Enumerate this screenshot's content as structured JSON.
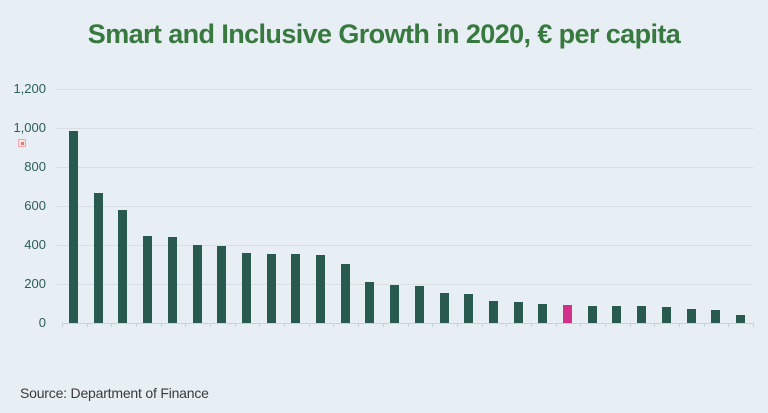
{
  "page": {
    "background_color": "#e7eef4"
  },
  "header": {
    "title": "Smart and Inclusive Growth in 2020, € per capita",
    "title_color": "#38793f"
  },
  "footer": {
    "source": "Source: Department of Finance"
  },
  "icons": {
    "broken_image": "broken-image-placeholder"
  },
  "chart_data": {
    "type": "bar",
    "title": "Smart and Inclusive Growth in 2020, € per capita",
    "values": [
      985,
      665,
      580,
      445,
      440,
      398,
      393,
      360,
      354,
      352,
      348,
      300,
      212,
      196,
      192,
      152,
      148,
      112,
      110,
      97,
      90,
      86,
      85,
      85,
      81,
      74,
      67,
      40
    ],
    "highlight_index": 20,
    "bar_color": "#285a50",
    "highlight_color": "#d2318a",
    "ylim": [
      0,
      1200
    ],
    "yticks": [
      1200,
      1000,
      800,
      600,
      400,
      200,
      0
    ],
    "ytick_labels": [
      "1,200",
      "1,000",
      "800",
      "600",
      "400",
      "200",
      "0"
    ],
    "xlabel": "",
    "ylabel": "",
    "x_axis_labels": [],
    "grid": true,
    "legend": false
  }
}
